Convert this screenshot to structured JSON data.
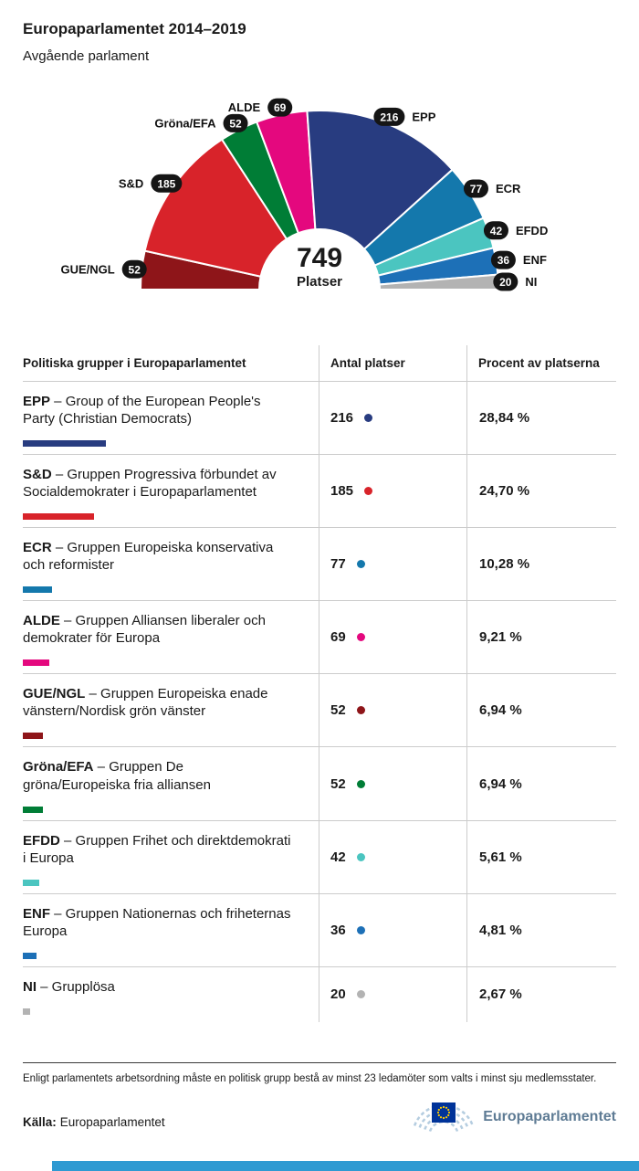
{
  "page": {
    "title": "Europaparlamentet 2014–2019",
    "subtitle": "Avgående parlament"
  },
  "chart_data": {
    "type": "hemicycle",
    "total": 749,
    "total_label": "749",
    "total_sublabel": "Platser",
    "groups": [
      {
        "abbr": "GUE/NGL",
        "seats": 52,
        "color": "#8e1519"
      },
      {
        "abbr": "S&D",
        "seats": 185,
        "color": "#d8232a"
      },
      {
        "abbr": "Gröna/EFA",
        "seats": 52,
        "color": "#007d36"
      },
      {
        "abbr": "ALDE",
        "seats": 69,
        "color": "#e4087e"
      },
      {
        "abbr": "EPP",
        "seats": 216,
        "color": "#283c80"
      },
      {
        "abbr": "ECR",
        "seats": 77,
        "color": "#1478ac"
      },
      {
        "abbr": "EFDD",
        "seats": 42,
        "color": "#4bc5c0"
      },
      {
        "abbr": "ENF",
        "seats": 36,
        "color": "#1d70b7"
      },
      {
        "abbr": "NI",
        "seats": 20,
        "color": "#b3b3b3"
      }
    ]
  },
  "table": {
    "headers": [
      "Politiska grupper i Europaparlamentet",
      "Antal platser",
      "Procent av platserna"
    ],
    "rows": [
      {
        "abbr": "EPP",
        "desc": "– Group of the European People's Party (Christian Democrats)",
        "seats": "216",
        "percent": "28,84 %",
        "pct": 28.84,
        "color": "#283c80"
      },
      {
        "abbr": "S&D",
        "desc": "– Gruppen Progressiva förbundet av Socialdemokrater i Europaparlamentet",
        "seats": "185",
        "percent": "24,70 %",
        "pct": 24.7,
        "color": "#d8232a"
      },
      {
        "abbr": "ECR",
        "desc": "– Gruppen Europeiska konservativa och reformister",
        "seats": "77",
        "percent": "10,28 %",
        "pct": 10.28,
        "color": "#1478ac"
      },
      {
        "abbr": "ALDE",
        "desc": "– Gruppen Alliansen liberaler och demokrater för Europa",
        "seats": "69",
        "percent": "9,21 %",
        "pct": 9.21,
        "color": "#e4087e"
      },
      {
        "abbr": "GUE/NGL",
        "desc": "– Gruppen Europeiska enade vänstern/Nordisk grön vänster",
        "seats": "52",
        "percent": "6,94 %",
        "pct": 6.94,
        "color": "#8e1519"
      },
      {
        "abbr": "Gröna/EFA",
        "desc": "– Gruppen De gröna/Europeiska fria alliansen",
        "seats": "52",
        "percent": "6,94 %",
        "pct": 6.94,
        "color": "#007d36"
      },
      {
        "abbr": "EFDD",
        "desc": "– Gruppen Frihet och direktdemokrati i Europa",
        "seats": "42",
        "percent": "5,61 %",
        "pct": 5.61,
        "color": "#4bc5c0"
      },
      {
        "abbr": "ENF",
        "desc": "– Gruppen Nationernas och friheternas Europa",
        "seats": "36",
        "percent": "4,81 %",
        "pct": 4.81,
        "color": "#1d70b7"
      },
      {
        "abbr": "NI",
        "desc": "– Grupplösa",
        "seats": "20",
        "percent": "2,67 %",
        "pct": 2.67,
        "color": "#b3b3b3"
      }
    ]
  },
  "footer": {
    "note": "Enligt parlamentets arbetsordning måste en politisk grupp bestå av minst 23 ledamöter som valts i minst sju medlemsstater.",
    "source_label": "Källa:",
    "source": "Europaparlamentet",
    "logo_text": "Europaparlamentet"
  },
  "colors": {
    "badge_background": "#151515",
    "bottom_bar": "#2e9ad2",
    "eu_flag_blue": "#003399",
    "eu_star_yellow": "#ffcc00"
  }
}
